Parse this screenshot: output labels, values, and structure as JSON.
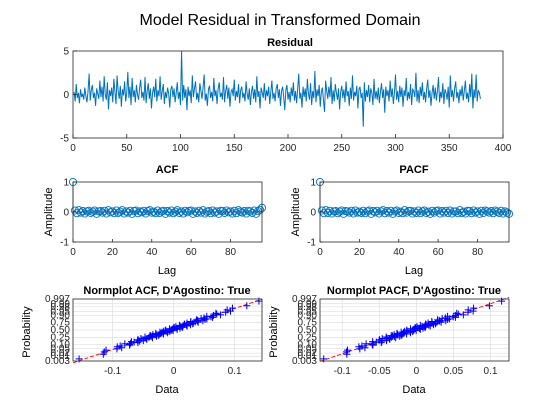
{
  "figure": {
    "suptitle": "Model Residual in Transformed Domain"
  },
  "colors": {
    "line": "#0072BD",
    "marker": "#0072BD",
    "stem": "#0072BD",
    "red": "#D95319",
    "normal": "#0000FF",
    "refline": "#FF0000"
  },
  "chart_data": [
    {
      "id": "residual",
      "type": "line",
      "title": "Residual",
      "xlabel": "",
      "ylabel": "",
      "xlim": [
        0,
        400
      ],
      "ylim": [
        -5,
        5
      ],
      "xticks": [
        0,
        50,
        100,
        150,
        200,
        250,
        300,
        350,
        400
      ],
      "yticks": [
        -5,
        0,
        5
      ],
      "grid": false,
      "y": [
        0.3,
        -0.8,
        1.2,
        -0.4,
        0.2,
        -1.0,
        0.6,
        -0.3,
        0.1,
        -0.6,
        0.8,
        -0.2,
        -0.9,
        0.4,
        2.4,
        -0.7,
        0.5,
        1.1,
        -0.4,
        0.2,
        -1.3,
        0.7,
        0.1,
        -0.5,
        1.6,
        -0.3,
        0.9,
        -0.8,
        2.1,
        0.0,
        -0.6,
        1.4,
        -1.7,
        0.5,
        -0.2,
        0.8,
        -0.9,
        1.8,
        0.3,
        -1.1,
        2.2,
        0.4,
        -0.5,
        1.0,
        -1.4,
        0.6,
        -0.1,
        1.5,
        -0.8,
        0.2,
        2.6,
        -0.4,
        0.9,
        -1.2,
        1.9,
        -0.3,
        0.5,
        -0.9,
        1.1,
        0.0,
        -0.6,
        0.8,
        1.7,
        -0.4,
        0.3,
        -0.7,
        2.0,
        -1.0,
        0.4,
        1.3,
        -0.5,
        0.7,
        -1.6,
        0.2,
        0.9,
        -0.3,
        1.8,
        -0.8,
        0.5,
        -0.2,
        2.1,
        -0.6,
        0.4,
        1.2,
        -1.1,
        0.3,
        -0.4,
        0.8,
        0.1,
        -1.5,
        0.6,
        1.0,
        -0.3,
        0.7,
        -0.9,
        0.2,
        1.4,
        -0.5,
        0.3,
        -1.2,
        5.0,
        -0.7,
        1.1,
        -0.4,
        0.6,
        -1.8,
        0.9,
        -0.2,
        0.5,
        -1.0,
        2.2,
        -0.3,
        0.7,
        1.5,
        -0.6,
        0.2,
        -0.9,
        1.3,
        0.4,
        -0.5,
        0.8,
        2.3,
        -0.7,
        0.1,
        -1.3,
        0.6,
        1.0,
        -0.4,
        0.3,
        -0.8,
        1.9,
        -0.2,
        0.5,
        -1.1,
        0.7,
        1.4,
        -0.3,
        0.2,
        -0.6,
        2.0,
        -0.9,
        0.4,
        1.1,
        -0.5,
        0.8,
        -1.4,
        0.3,
        0.6,
        -0.2,
        1.7,
        -0.7,
        0.4,
        -0.3,
        1.2,
        -1.0,
        0.5,
        0.9,
        -0.4,
        0.2,
        -0.8,
        1.5,
        0.1,
        -0.6,
        0.7,
        -1.2,
        0.3,
        1.0,
        -0.5,
        0.6,
        -0.9,
        2.1,
        -0.3,
        0.4,
        -1.6,
        0.8,
        0.2,
        -0.4,
        1.3,
        -0.7,
        0.5,
        -0.2,
        0.9,
        -1.1,
        0.3,
        1.6,
        -0.5,
        0.2,
        -0.8,
        0.7,
        1.2,
        -0.4,
        0.6,
        -1.3,
        0.4,
        0.9,
        -0.3,
        -1.8,
        0.5,
        1.1,
        -0.6,
        0.3,
        -0.9,
        0.8,
        -0.2,
        1.4,
        -0.7,
        0.4,
        -1.0,
        0.6,
        2.4,
        -0.5,
        0.2,
        -1.5,
        0.9,
        -0.3,
        0.7,
        -0.8,
        1.8,
        0.1,
        -0.6,
        1.3,
        -1.2,
        0.4,
        -0.4,
        2.7,
        -0.9,
        0.6,
        -0.2,
        1.1,
        -1.4,
        0.3,
        0.8,
        -0.7,
        -2.0,
        1.6,
        0.4,
        -0.5,
        0.9,
        -0.3,
        2.0,
        -1.1,
        0.5,
        -0.8,
        1.2,
        0.2,
        -0.6,
        0.7,
        -1.7,
        0.3,
        1.0,
        -0.4,
        0.6,
        -0.9,
        1.5,
        -0.2,
        0.4,
        -1.3,
        0.8,
        -0.5,
        2.2,
        -0.7,
        0.3,
        -0.2,
        1.0,
        -1.6,
        0.6,
        0.9,
        -0.4,
        0.2,
        -3.7,
        1.4,
        -0.8,
        0.5,
        -0.3,
        1.1,
        -0.9,
        0.7,
        0.2,
        -1.2,
        1.8,
        -0.5,
        0.4,
        -0.6,
        0.8,
        -1.0,
        0.3,
        1.3,
        -0.4,
        0.6,
        -2.1,
        0.9,
        -0.2,
        0.5,
        -0.8,
        1.6,
        -0.3,
        0.7,
        -1.1,
        0.2,
        2.3,
        -0.6,
        0.4,
        -0.9,
        1.0,
        -0.3,
        0.8,
        -1.4,
        0.5,
        -0.2,
        1.9,
        -0.7,
        0.3,
        -0.5,
        1.2,
        -1.2,
        0.6,
        0.4,
        -0.3,
        2.5,
        -0.8,
        0.5,
        -1.0,
        0.9,
        -0.2,
        1.4,
        -0.6,
        0.3,
        -0.9,
        0.7,
        1.7,
        -0.4,
        0.5,
        -1.3,
        0.2,
        1.1,
        -0.5,
        0.8,
        -0.7,
        0.4,
        2.0,
        -0.9,
        0.3,
        -0.4,
        1.3,
        -1.1,
        0.6,
        0.2,
        -0.6,
        0.9,
        -1.5,
        2.2,
        -0.3,
        0.5,
        -0.8,
        0.7,
        1.5,
        -0.4,
        0.3,
        -1.0,
        0.6,
        -0.2,
        1.0,
        -0.7,
        0.4,
        1.6,
        -0.5,
        0.2,
        -0.9,
        1.2,
        -0.3,
        2.4,
        -1.6,
        0.6,
        -0.4,
        2.3,
        -0.8,
        0.5,
        0.2,
        -0.5
      ]
    },
    {
      "id": "acf",
      "type": "scatter",
      "title": "ACF",
      "xlabel": "Lag",
      "ylabel": "Amplitude",
      "xlim": [
        0,
        96
      ],
      "ylim": [
        -1,
        1
      ],
      "xticks": [
        0,
        20,
        40,
        60,
        80
      ],
      "yticks": [
        -1,
        0,
        1
      ],
      "values": [
        1,
        0.05,
        -0.04,
        0.06,
        -0.02,
        0.03,
        -0.05,
        0.02,
        0.04,
        -0.03,
        0.01,
        0.05,
        -0.06,
        0.02,
        0.03,
        -0.02,
        0.04,
        -0.05,
        0.06,
        -0.01,
        0.02,
        -0.04,
        0.05,
        -0.03,
        0.01,
        0.06,
        -0.05,
        0.02,
        -0.02,
        0.04,
        -0.06,
        0.03,
        0.05,
        -0.04,
        0.02,
        -0.01,
        0.04,
        -0.05,
        0.03,
        0.06,
        -0.02,
        0.01,
        -0.04,
        0.05,
        -0.03,
        0.02,
        0.04,
        -0.06,
        0.03,
        -0.02,
        0.05,
        -0.04,
        0.01,
        0.06,
        -0.03,
        0.02,
        -0.05,
        0.04,
        -0.01,
        0.03,
        0.05,
        -0.06,
        0.02,
        -0.03,
        0.04,
        -0.02,
        0.06,
        -0.05,
        0.01,
        0.03,
        -0.04,
        0.05,
        -0.02,
        0.02,
        -0.06,
        0.04,
        0.03,
        -0.03,
        0.05,
        -0.01,
        0.02,
        -0.05,
        0.04,
        -0.04,
        0.06,
        0.01,
        -0.02,
        0.03,
        -0.05,
        0.04,
        0.02,
        -0.03,
        0.05,
        -0.06,
        0.03,
        0.07,
        0.14
      ]
    },
    {
      "id": "pacf",
      "type": "scatter",
      "title": "PACF",
      "xlabel": "Lag",
      "ylabel": "Amplitude",
      "xlim": [
        0,
        96
      ],
      "ylim": [
        -1,
        1
      ],
      "xticks": [
        0,
        20,
        40,
        60,
        80
      ],
      "yticks": [
        -1,
        0,
        1
      ],
      "values": [
        1,
        0.05,
        -0.04,
        0.06,
        -0.03,
        0.04,
        -0.05,
        0.02,
        0.03,
        -0.04,
        0.01,
        0.05,
        -0.06,
        0.03,
        0.02,
        -0.02,
        0.04,
        -0.05,
        0.05,
        -0.02,
        0.01,
        -0.03,
        0.04,
        -0.04,
        0.02,
        0.05,
        -0.06,
        0.03,
        -0.01,
        0.04,
        -0.05,
        0.02,
        0.06,
        -0.04,
        0.03,
        -0.02,
        0.04,
        -0.06,
        0.02,
        0.05,
        -0.03,
        0.01,
        -0.04,
        0.06,
        -0.02,
        0.03,
        0.04,
        -0.05,
        0.02,
        -0.03,
        0.05,
        -0.04,
        0.02,
        0.05,
        -0.03,
        0.01,
        -0.06,
        0.04,
        -0.02,
        0.03,
        0.05,
        -0.05,
        0.03,
        -0.02,
        0.04,
        -0.03,
        0.05,
        -0.05,
        0.02,
        0.02,
        -0.04,
        0.06,
        -0.03,
        0.01,
        -0.05,
        0.04,
        0.03,
        -0.04,
        0.05,
        -0.02,
        0.02,
        -0.06,
        0.04,
        -0.03,
        0.05,
        0.02,
        -0.02,
        0.03,
        -0.04,
        0.05,
        0.01,
        -0.03,
        0.04,
        -0.05,
        0.02,
        -0.02,
        -0.06
      ]
    },
    {
      "id": "normacf",
      "type": "scatter",
      "title": "Normplot ACF, D'Agostino: True",
      "xlabel": "Data",
      "ylabel": "Probability",
      "xlim": [
        -0.165,
        0.145
      ],
      "xticks": [
        -0.1,
        0,
        0.1
      ],
      "xticklabels": [
        "-0.1",
        "0",
        "0.1"
      ],
      "prob_ticks": [
        0.003,
        0.01,
        0.02,
        0.05,
        0.1,
        0.25,
        0.5,
        0.75,
        0.9,
        0.95,
        0.98,
        0.99,
        0.997
      ],
      "prob_ticklabels": [
        "0.003",
        "0.01",
        "0.02",
        "0.05",
        "0.10",
        "0.25",
        "0.50",
        "0.75",
        "0.90",
        "0.95",
        "0.98",
        "0.99",
        "0.997"
      ],
      "fit": {
        "mu": -0.005,
        "sigma": 0.055
      },
      "data_min": -0.155,
      "data_max": 0.14,
      "n": 95
    },
    {
      "id": "normpacf",
      "type": "scatter",
      "title": "Normplot PACF, D'Agostino: True",
      "xlabel": "Data",
      "ylabel": "Probability",
      "xlim": [
        -0.13,
        0.125
      ],
      "xticks": [
        -0.1,
        -0.05,
        0,
        0.05,
        0.1
      ],
      "xticklabels": [
        "-0.1",
        "-0.05",
        "0",
        "0.05",
        "0.1"
      ],
      "prob_ticks": [
        0.003,
        0.01,
        0.02,
        0.05,
        0.1,
        0.25,
        0.5,
        0.75,
        0.9,
        0.95,
        0.98,
        0.99,
        0.997
      ],
      "prob_ticklabels": [
        "0.003",
        "0.01",
        "0.02",
        "0.05",
        "0.10",
        "0.25",
        "0.50",
        "0.75",
        "0.90",
        "0.95",
        "0.98",
        "0.99",
        "0.997"
      ],
      "fit": {
        "mu": -0.005,
        "sigma": 0.045
      },
      "data_min": -0.125,
      "data_max": 0.115,
      "n": 95
    }
  ]
}
